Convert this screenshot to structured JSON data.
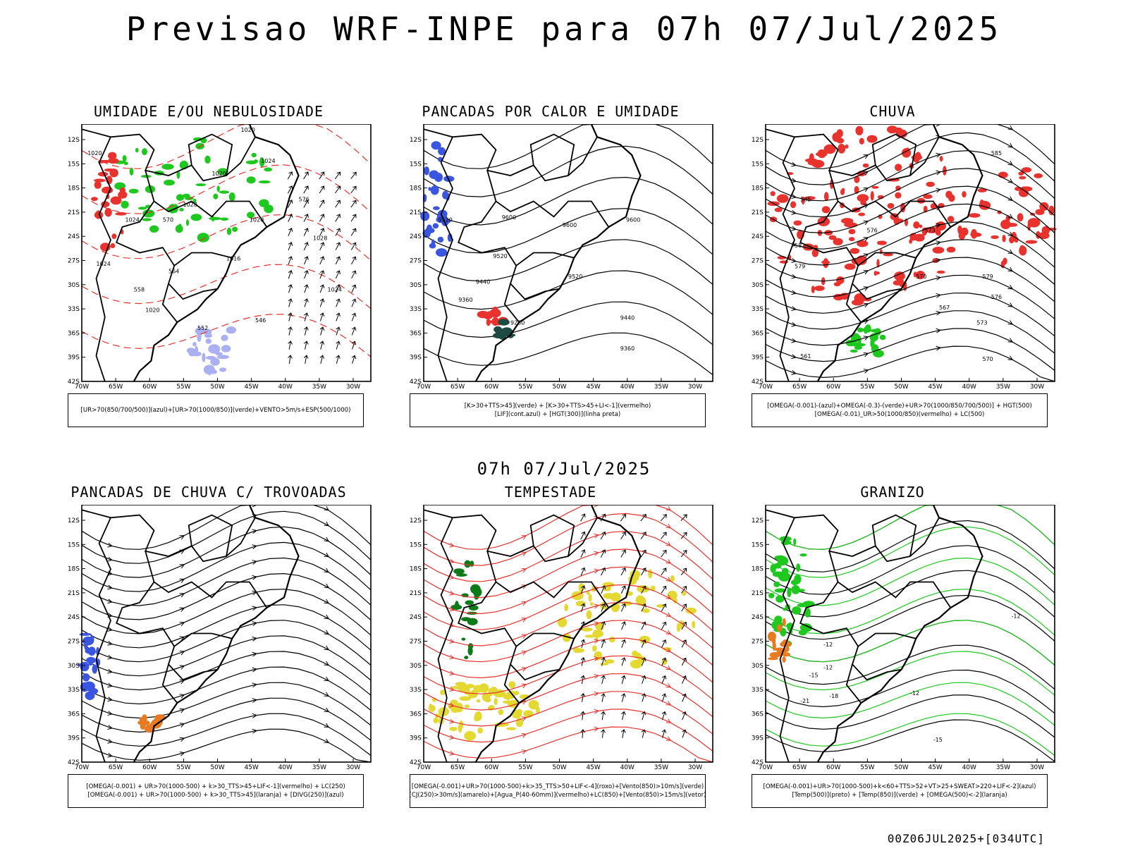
{
  "header": {
    "title": "Previsao WRF-INPE  para 07h 07/Jul/2025",
    "subtitle": "07h 07/Jul/2025",
    "footer": "00Z06JUL2025+[034UTC]"
  },
  "axes": {
    "lat_labels": [
      "12S",
      "15S",
      "18S",
      "21S",
      "24S",
      "27S",
      "30S",
      "33S",
      "36S",
      "39S",
      "42S"
    ],
    "lon_labels": [
      "70W",
      "65W",
      "60W",
      "55W",
      "50W",
      "45W",
      "40W",
      "35W",
      "30W"
    ]
  },
  "colors": {
    "red": "#e8322d",
    "green": "#1ec81e",
    "blue": "#3a55e0",
    "lavender": "#aab0f0",
    "yellow": "#e4d832",
    "orange": "#e87a22",
    "darkgreen": "#0d7a1a",
    "teal": "#1e4a44",
    "black": "#000000"
  },
  "panels": [
    {
      "title": "UMIDADE E/OU NEBULOSIDADE",
      "legend": [
        "[UR>70(850/700/500)](azul)+[UR>70(1000/850)](verde)+VENTO>5m/s+ESP(500/1000)"
      ],
      "labels": [
        "1020",
        "1020",
        "1020",
        "1024",
        "1024",
        "1028",
        "1016",
        "1020",
        "1024",
        "1020",
        "1028",
        "1024",
        "570",
        "564",
        "558",
        "552",
        "546",
        "576"
      ]
    },
    {
      "title": "PANCADAS POR CALOR E UMIDADE",
      "legend": [
        "[K>30+TTS>45](verde) + [K>30+TTS>45+LI<-1](vermelho)",
        "[LIF](cont.azul) + [HGT(300)](linha preta)"
      ],
      "labels": [
        "9600",
        "9600",
        "9600",
        "9520",
        "9520",
        "9440",
        "9360",
        "9280",
        "9520",
        "9440",
        "9360"
      ]
    },
    {
      "title": "CHUVA",
      "legend": [
        "[OMEGA(-0.001)-(azul)+OMEGA(-0.3)-(verde)+UR>70(1000/850/700/500)] + HGT(500)",
        "[OMEGA(-0.01)_UR>50(1000/850)(vermelho) + LC(500)"
      ],
      "labels": [
        "585",
        "585",
        "582",
        "579",
        "576",
        "573",
        "570",
        "567",
        "561",
        "579",
        "576",
        "573",
        "570"
      ]
    },
    {
      "title": "PANCADAS DE CHUVA C/ TROVOADAS",
      "legend": [
        "[OMEGA(-0.001) + UR>70(1000-500) + k>30_TTS>45+LIF<-1](vermelho) + LC(250)",
        "[OMEGA(-0.001) + UR>70(1000-500) + k>30_TTS>45](laranja) + [DIVG(250)](azul)"
      ],
      "labels": []
    },
    {
      "title": "TEMPESTADE",
      "legend": [
        "[OMEGA(-0.001)+UR>70(1000-500)+k>35_TTS>50+LIF<-4](roxo)+[Vento(850)>10m/s](verde)",
        "[CJ(250)>30m/s](amarelo)+[Agua_P(40-60mm)](vermelho)+LC(850)+[Vento(850)>15m/s](vetor)"
      ],
      "labels": []
    },
    {
      "title": "GRANIZO",
      "legend": [
        "[OMEGA(-0.001)+UR>70(1000-500)+k<60+TTS>52+VT>25+SWEAT>220+LIF<-2](azul)",
        "[Temp(500)](preto) + [Temp(850)](verde) + [OMEGA(500)<-2](laranja)"
      ],
      "labels": [
        "-12",
        "-12",
        "-12",
        "-15",
        "-18",
        "-21",
        "-12",
        "-15"
      ]
    }
  ]
}
